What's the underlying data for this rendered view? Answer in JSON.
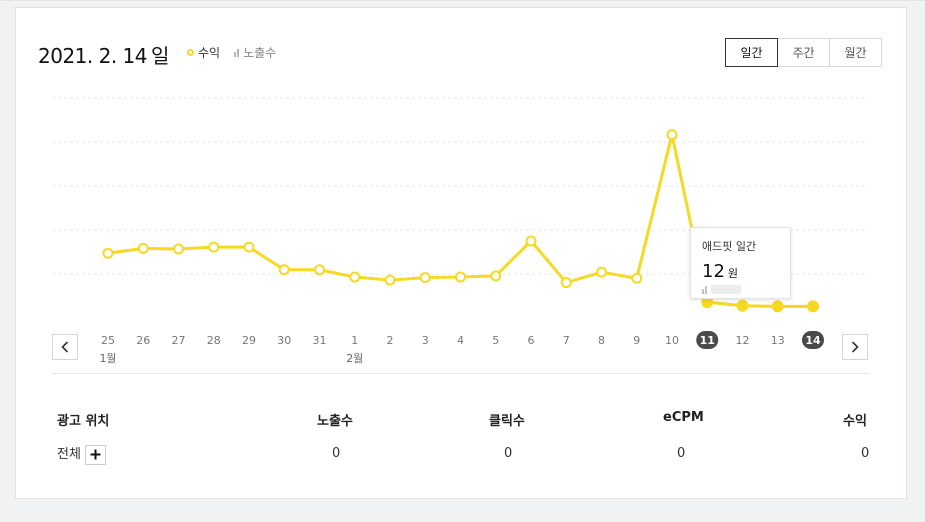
{
  "header": {
    "date": "2021. 2. 14",
    "date_unit": "일",
    "legend": {
      "revenue": "수익",
      "impressions": "노출수"
    },
    "period_tabs": [
      {
        "label": "일간",
        "active": true
      },
      {
        "label": "주간",
        "active": false
      },
      {
        "label": "월간",
        "active": false
      }
    ]
  },
  "chart_data": {
    "type": "line",
    "x": [
      "25",
      "26",
      "27",
      "28",
      "29",
      "30",
      "31",
      "1",
      "2",
      "3",
      "4",
      "5",
      "6",
      "7",
      "8",
      "9",
      "10",
      "11",
      "12",
      "13",
      "14"
    ],
    "month_labels": [
      {
        "at": "25",
        "label": "1월"
      },
      {
        "at": "1",
        "label": "2월"
      }
    ],
    "series": [
      {
        "name": "수익",
        "values": [
          9.6,
          10.4,
          10.3,
          10.6,
          10.6,
          6.9,
          6.9,
          5.7,
          5.2,
          5.6,
          5.7,
          5.9,
          11.6,
          4.8,
          6.5,
          5.5,
          29.0,
          1.6,
          1.0,
          0.9,
          0.9
        ]
      }
    ],
    "highlighted": [
      "11",
      "14"
    ],
    "ylim": [
      -1,
      35
    ],
    "grid": true,
    "color": "#f6d922"
  },
  "tooltip": {
    "title": "애드핏 일간",
    "value": "12",
    "unit": "원"
  },
  "table": {
    "headers": [
      "광고 위치",
      "노출수",
      "클릭수",
      "eCPM",
      "수익"
    ],
    "rows": [
      {
        "label": "전체",
        "impressions": "0",
        "clicks": "0",
        "ecpm": "0",
        "revenue": "0"
      }
    ]
  },
  "icons": {
    "prev": "chevron-left-icon",
    "next": "chevron-right-icon",
    "expand": "plus-icon"
  }
}
